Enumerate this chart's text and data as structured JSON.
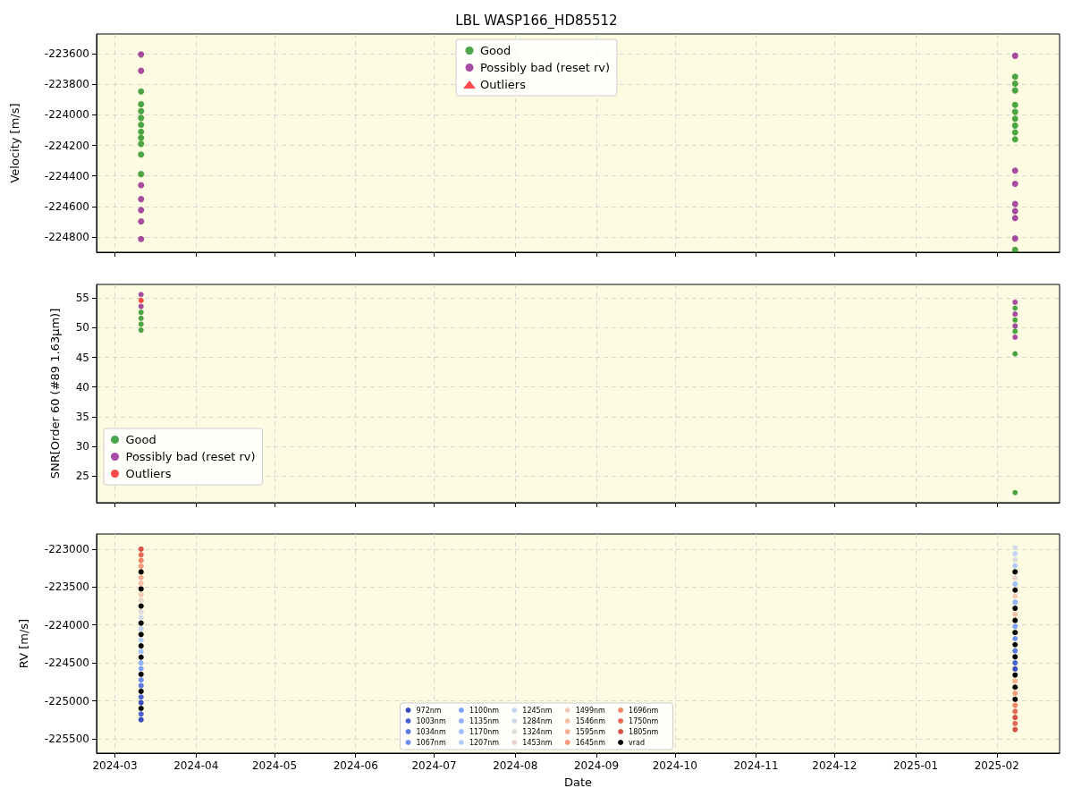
{
  "chart_data": [
    {
      "type": "scatter",
      "title": "LBL WASP166_HD85512",
      "ylabel": "Velocity [m/s]",
      "xlim": [
        "2024-02-23",
        "2025-02-25"
      ],
      "xticks": [
        "2024-03",
        "2024-04",
        "2024-05",
        "2024-06",
        "2024-07",
        "2024-08",
        "2024-09",
        "2024-10",
        "2024-11",
        "2024-12",
        "2025-01",
        "2025-02"
      ],
      "ylim": [
        -224900,
        -223470
      ],
      "yticks": [
        -224800,
        -224600,
        -224400,
        -224200,
        -224000,
        -223800,
        -223600
      ],
      "grid": true,
      "legend": "top",
      "tick_labels": "y",
      "marker": "circle",
      "series": [
        {
          "name": "Good",
          "color": "#008000",
          "x": [
            "2024-03-11",
            "2024-03-11",
            "2024-03-11",
            "2024-03-11",
            "2024-03-11",
            "2024-03-11",
            "2024-03-11",
            "2024-03-11",
            "2024-03-11",
            "2024-03-11",
            "2025-02-08",
            "2025-02-08",
            "2025-02-08",
            "2025-02-08",
            "2025-02-08",
            "2025-02-08",
            "2025-02-08",
            "2025-02-08",
            "2025-02-08",
            "2025-02-08"
          ],
          "values": [
            -223847,
            -223930,
            -223975,
            -224020,
            -224065,
            -224110,
            -224150,
            -224190,
            -224260,
            -224388,
            -223750,
            -223795,
            -223840,
            -223935,
            -223980,
            -224025,
            -224070,
            -224115,
            -224160,
            -224884
          ]
        },
        {
          "name": "Possibly bad (reset rv)",
          "color": "#800080",
          "x": [
            "2024-03-11",
            "2024-03-11",
            "2024-03-11",
            "2024-03-11",
            "2024-03-11",
            "2024-03-11",
            "2024-03-11",
            "2025-02-08",
            "2025-02-08",
            "2025-02-08",
            "2025-02-08",
            "2025-02-08",
            "2025-02-08",
            "2025-02-08"
          ],
          "values": [
            -223604,
            -223711,
            -224460,
            -224552,
            -224624,
            -224698,
            -224814,
            -223613,
            -224365,
            -224452,
            -224584,
            -224630,
            -224676,
            -224810
          ]
        },
        {
          "name": "Outliers",
          "color": "#ff0000",
          "marker": "triangle"
        }
      ]
    },
    {
      "type": "scatter",
      "ylabel": "SNR[Order 60 (#89 1.63μm)]",
      "xlim": [
        "2024-02-23",
        "2025-02-25"
      ],
      "xticks": [
        "2024-03",
        "2024-04",
        "2024-05",
        "2024-06",
        "2024-07",
        "2024-08",
        "2024-09",
        "2024-10",
        "2024-11",
        "2024-12",
        "2025-01",
        "2025-02"
      ],
      "ylim": [
        20.5,
        57.3
      ],
      "yticks": [
        25,
        30,
        35,
        40,
        45,
        50,
        55
      ],
      "grid": true,
      "legend": "bottom left",
      "tick_labels": "y",
      "marker": "circle",
      "series": [
        {
          "name": "Good",
          "color": "#008000",
          "x": [
            "2024-03-11",
            "2024-03-11",
            "2024-03-11",
            "2024-03-11",
            "2025-02-08",
            "2025-02-08",
            "2025-02-08",
            "2025-02-08",
            "2025-02-08"
          ],
          "values": [
            52.6,
            51.6,
            50.6,
            49.6,
            53.3,
            51.3,
            49.4,
            45.6,
            22.2
          ]
        },
        {
          "name": "Possibly bad (reset rv)",
          "color": "#800080",
          "x": [
            "2024-03-11",
            "2024-03-11",
            "2025-02-08",
            "2025-02-08",
            "2025-02-08",
            "2025-02-08"
          ],
          "values": [
            55.6,
            53.6,
            54.3,
            52.3,
            50.3,
            48.4
          ]
        },
        {
          "name": "Outliers",
          "color": "#ff0000",
          "x": [
            "2024-03-11"
          ],
          "values": [
            54.6
          ]
        }
      ]
    },
    {
      "type": "scatter",
      "xlabel": "Date",
      "ylabel": "RV [m/s]",
      "xlim": [
        "2024-02-23",
        "2025-02-25"
      ],
      "xticks": [
        "2024-03",
        "2024-04",
        "2024-05",
        "2024-06",
        "2024-07",
        "2024-08",
        "2024-09",
        "2024-10",
        "2024-11",
        "2024-12",
        "2025-01",
        "2025-02"
      ],
      "ylim": [
        -225690,
        -222800
      ],
      "yticks": [
        -225500,
        -225000,
        -224500,
        -224000,
        -223500,
        -223000
      ],
      "grid": true,
      "legend": "bottom",
      "marker": "circle",
      "x": [
        "2024-03-11",
        "2025-02-08"
      ],
      "series": [
        {
          "name": "972nm",
          "color": "#3b4cc0",
          "x": [
            "2024-03-11",
            "2024-03-11",
            "2025-02-08"
          ],
          "values": [
            -225025,
            -225250,
            -224580
          ]
        },
        {
          "name": "1003nm",
          "color": "#4a63d3",
          "x": [
            "2024-03-11",
            "2024-03-11",
            "2025-02-08"
          ],
          "values": [
            -224950,
            -225175,
            -224500
          ]
        },
        {
          "name": "1034nm",
          "color": "#5b7be1",
          "values": [
            -224800,
            -224340
          ]
        },
        {
          "name": "1067nm",
          "color": "#6c8ff1",
          "values": [
            -224725,
            -224180
          ]
        },
        {
          "name": "1100nm",
          "color": "#7ea1f9",
          "values": [
            -224575,
            -224020
          ]
        },
        {
          "name": "1135nm",
          "color": "#90b2fe",
          "values": [
            -224500,
            -223700
          ]
        },
        {
          "name": "1170nm",
          "color": "#a2c1ff",
          "values": [
            -224350,
            -223460
          ]
        },
        {
          "name": "1207nm",
          "color": "#b3cdfb",
          "values": [
            -224200,
            -223220
          ]
        },
        {
          "name": "1245nm",
          "color": "#c4d5f3",
          "values": [
            -224050,
            -223060
          ]
        },
        {
          "name": "1284nm",
          "color": "#d2dbe8",
          "values": [
            -223900,
            -222980
          ]
        },
        {
          "name": "1324nm",
          "color": "#dddcdc",
          "values": [
            -223825,
            -223140
          ]
        },
        {
          "name": "1453nm",
          "color": "#e8d6cc",
          "values": [
            -223675,
            -223380
          ]
        },
        {
          "name": "1499nm",
          "color": "#f1ccb8",
          "values": [
            -223600,
            -223620
          ]
        },
        {
          "name": "1546nm",
          "color": "#f6bfa6",
          "values": [
            -223450,
            -223860
          ]
        },
        {
          "name": "1595nm",
          "color": "#f7af91",
          "values": [
            -223375,
            -224740
          ]
        },
        {
          "name": "1645nm",
          "color": "#f59c7d",
          "values": [
            -223225,
            -224900
          ]
        },
        {
          "name": "1696nm",
          "color": "#ee8669",
          "values": [
            -223150,
            -225060
          ]
        },
        {
          "name": "1750nm",
          "color": "#e36c55",
          "x": [
            "2024-03-11",
            "2025-02-08",
            "2025-02-08"
          ],
          "values": [
            -223075,
            -225140,
            -225300
          ]
        },
        {
          "name": "1805nm",
          "color": "#d65244",
          "x": [
            "2024-03-11",
            "2025-02-08",
            "2025-02-08"
          ],
          "values": [
            -223000,
            -225220,
            -225380
          ]
        },
        {
          "name": "vrad",
          "color": "#000000",
          "x": [
            "2024-03-11",
            "2024-03-11",
            "2024-03-11",
            "2024-03-11",
            "2024-03-11",
            "2024-03-11",
            "2024-03-11",
            "2024-03-11",
            "2024-03-11",
            "2024-03-11",
            "2025-02-08",
            "2025-02-08",
            "2025-02-08",
            "2025-02-08",
            "2025-02-08",
            "2025-02-08",
            "2025-02-08",
            "2025-02-08",
            "2025-02-08",
            "2025-02-08"
          ],
          "values": [
            -223300,
            -223525,
            -223750,
            -223975,
            -224125,
            -224275,
            -224425,
            -224650,
            -224875,
            -225100,
            -223300,
            -223540,
            -223780,
            -223940,
            -224100,
            -224260,
            -224420,
            -224660,
            -224820,
            -224980
          ]
        }
      ]
    }
  ]
}
